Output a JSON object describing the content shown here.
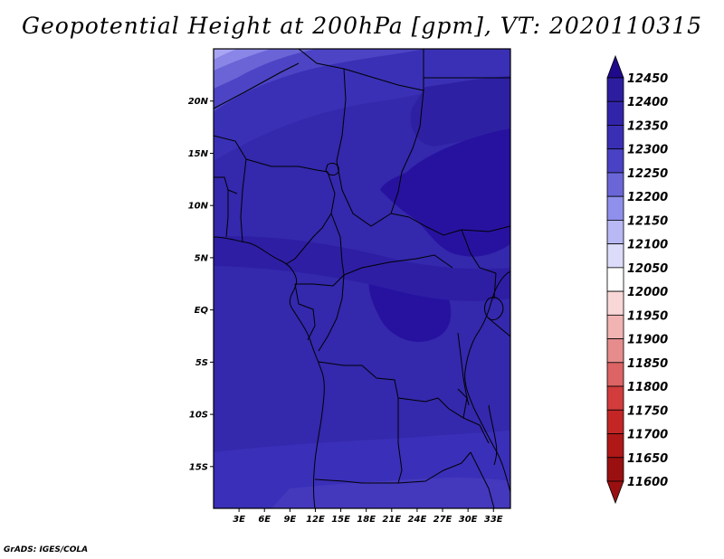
{
  "title": "Geopotential Height at 200hPa [gpm], VT: 2020110315",
  "credit": "GrADS: IGES/COLA",
  "map": {
    "lon_ticks": [
      "3E",
      "6E",
      "9E",
      "12E",
      "15E",
      "18E",
      "21E",
      "24E",
      "27E",
      "30E",
      "33E"
    ],
    "lat_ticks": [
      "20N",
      "15N",
      "10N",
      "5N",
      "EQ",
      "5S",
      "10S",
      "15S"
    ],
    "region": "Central Africa"
  },
  "chart_data": {
    "type": "heatmap",
    "title": "Geopotential Height at 200hPa [gpm], VT: 2020110315",
    "variable": "Geopotential Height",
    "level": "200hPa",
    "units": "gpm",
    "valid_time": "2020110315",
    "xlim": [
      0,
      35
    ],
    "ylim": [
      -19,
      25
    ],
    "x_ticks_deg": [
      3,
      6,
      9,
      12,
      15,
      18,
      21,
      24,
      27,
      30,
      33
    ],
    "y_ticks_deg": [
      20,
      15,
      10,
      5,
      0,
      -5,
      -10,
      -15
    ],
    "colorbar": {
      "levels": [
        12450,
        12400,
        12350,
        12300,
        12250,
        12200,
        12150,
        12100,
        12050,
        12000,
        11950,
        11900,
        11850,
        11800,
        11750,
        11700,
        11650,
        11600
      ],
      "colors": [
        "#1f0a8c",
        "#2d1ea0",
        "#3224aa",
        "#3a2fb4",
        "#4a42c4",
        "#6a66d8",
        "#8f8fec",
        "#b8b8f4",
        "#dcdcfa",
        "#ffffff",
        "#fad7d7",
        "#f2b3b3",
        "#e68c8c",
        "#dc6464",
        "#d23c3c",
        "#c42626",
        "#b01818",
        "#9a1010"
      ]
    }
  }
}
